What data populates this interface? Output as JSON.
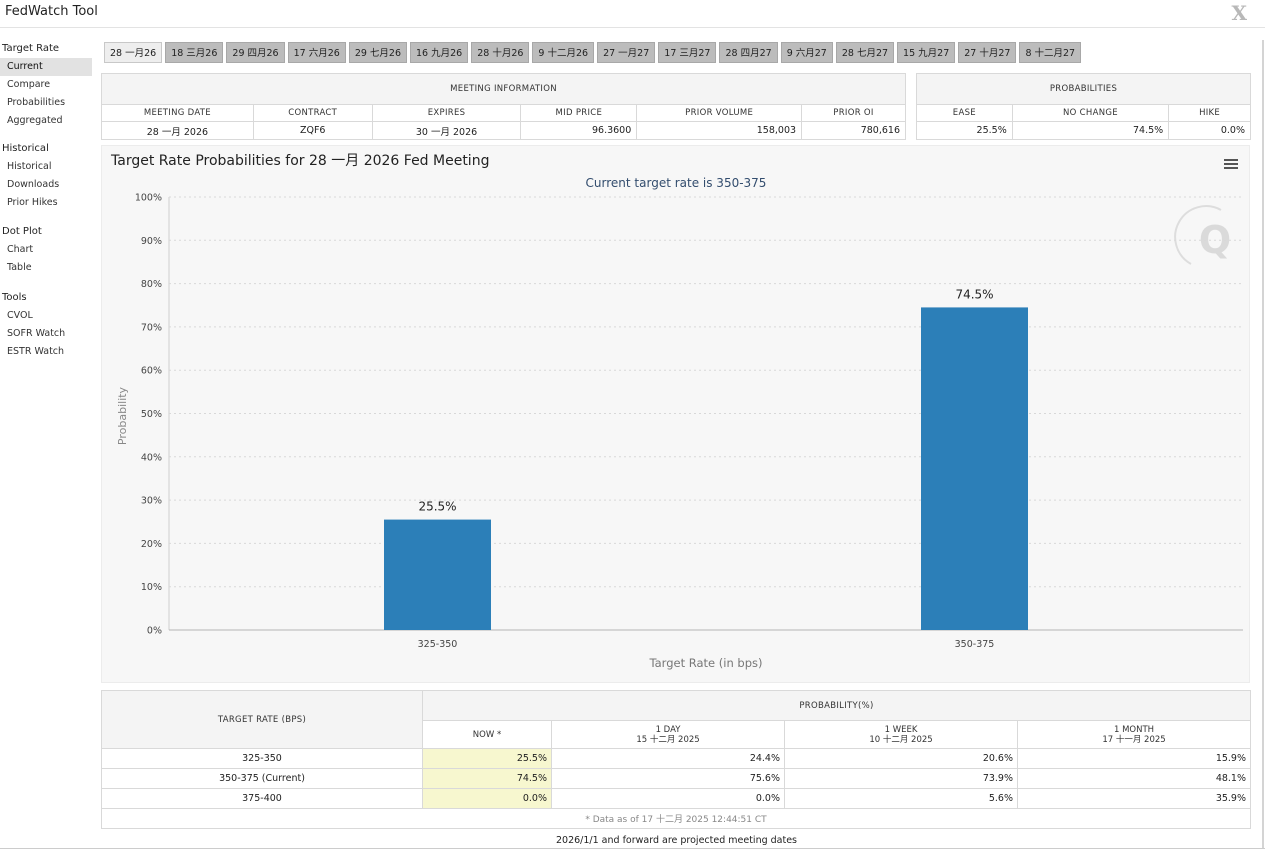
{
  "app": {
    "title": "FedWatch Tool",
    "close_glyph": "X",
    "icon": "close-icon"
  },
  "sidebar": {
    "sections": [
      {
        "title": "Target Rate",
        "items": [
          {
            "label": "Current",
            "active": true
          },
          {
            "label": "Compare"
          },
          {
            "label": "Probabilities"
          },
          {
            "label": "Aggregated"
          }
        ]
      },
      {
        "title": "Historical",
        "items": [
          {
            "label": "Historical"
          },
          {
            "label": "Downloads"
          },
          {
            "label": "Prior Hikes"
          }
        ]
      },
      {
        "title": "Dot Plot",
        "items": [
          {
            "label": "Chart"
          },
          {
            "label": "Table"
          }
        ]
      },
      {
        "title": "Tools",
        "items": [
          {
            "label": "CVOL"
          },
          {
            "label": "SOFR Watch"
          },
          {
            "label": "ESTR Watch"
          }
        ]
      }
    ]
  },
  "tabs": [
    "28 一月26",
    "18 三月26",
    "29 四月26",
    "17 六月26",
    "29 七月26",
    "16 九月26",
    "28 十月26",
    "9 十二月26",
    "27 一月27",
    "17 三月27",
    "28 四月27",
    "9 六月27",
    "28 七月27",
    "15 九月27",
    "27 十月27",
    "8 十二月27"
  ],
  "active_tab": 0,
  "meeting_info": {
    "header": "MEETING INFORMATION",
    "columns": [
      "MEETING DATE",
      "CONTRACT",
      "EXPIRES",
      "MID PRICE",
      "PRIOR VOLUME",
      "PRIOR OI"
    ],
    "values": [
      "28 一月 2026",
      "ZQF6",
      "30 一月 2026",
      "96.3600",
      "158,003",
      "780,616"
    ]
  },
  "probabilities": {
    "header": "PROBABILITIES",
    "columns": [
      "EASE",
      "NO CHANGE",
      "HIKE"
    ],
    "values": [
      "25.5%",
      "74.5%",
      "0.0%"
    ]
  },
  "chart": {
    "menu_icon": "hamburger-menu-icon",
    "watermark_icon": "q-logo-icon",
    "watermark_text": "Q"
  },
  "chart_data": {
    "type": "bar",
    "title": "Target Rate Probabilities for 28 一月 2026 Fed Meeting",
    "subtitle": "Current target rate is 350-375",
    "categories": [
      "325-350",
      "350-375"
    ],
    "values": [
      25.5,
      74.5
    ],
    "data_labels": [
      "25.5%",
      "74.5%"
    ],
    "xlabel": "Target Rate (in bps)",
    "ylabel": "Probability",
    "ylim": [
      0,
      100
    ],
    "yticks": [
      "0%",
      "10%",
      "20%",
      "30%",
      "40%",
      "50%",
      "60%",
      "70%",
      "80%",
      "90%",
      "100%"
    ],
    "bar_color": "#2c7fb8",
    "grid": true
  },
  "prob_table": {
    "target_header": "TARGET RATE (BPS)",
    "prob_header": "PROBABILITY(%)",
    "cols": [
      {
        "line1": "NOW *",
        "line2": ""
      },
      {
        "line1": "1 DAY",
        "line2": "15 十二月 2025"
      },
      {
        "line1": "1 WEEK",
        "line2": "10 十二月 2025"
      },
      {
        "line1": "1 MONTH",
        "line2": "17 十一月 2025"
      }
    ],
    "rows": [
      {
        "rate": "325-350",
        "vals": [
          "25.5%",
          "24.4%",
          "20.6%",
          "15.9%"
        ]
      },
      {
        "rate": "350-375 (Current)",
        "vals": [
          "74.5%",
          "75.6%",
          "73.9%",
          "48.1%"
        ]
      },
      {
        "rate": "375-400",
        "vals": [
          "0.0%",
          "0.0%",
          "5.6%",
          "35.9%"
        ]
      }
    ],
    "footnote": "* Data as of 17 十二月 2025 12:44:51 CT"
  },
  "projected_note": "2026/1/1 and forward are projected meeting dates"
}
